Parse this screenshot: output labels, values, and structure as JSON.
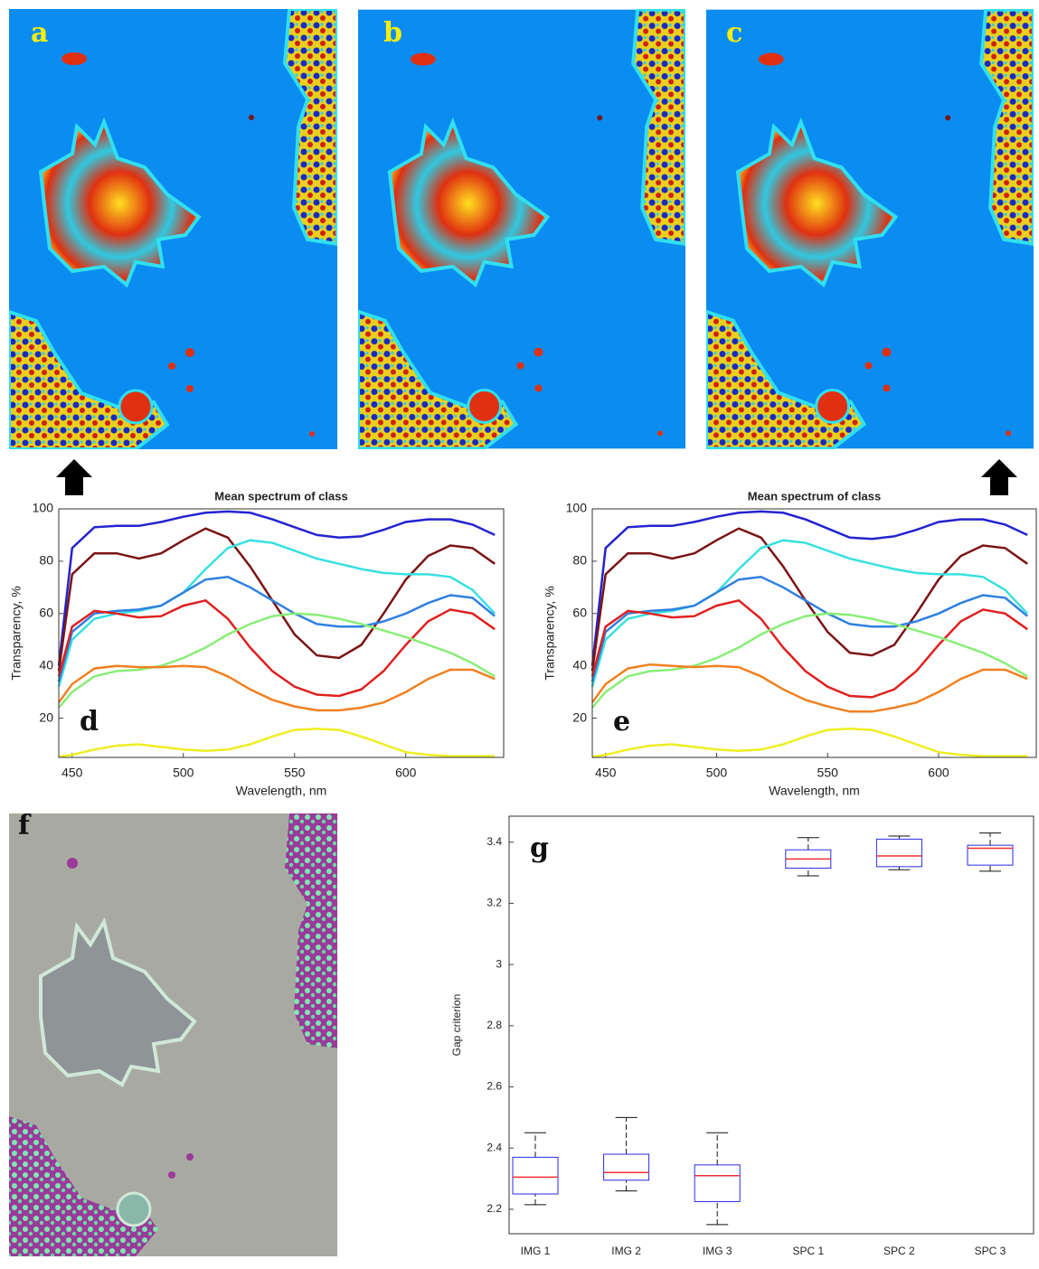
{
  "image_panels": [
    {
      "label": "a"
    },
    {
      "label": "b"
    },
    {
      "label": "c"
    },
    {
      "label": "f"
    }
  ],
  "chart_data": [
    {
      "type": "line",
      "panel_label": "d",
      "title": "Mean spectrum of class",
      "x_label": "Wavelength, nm",
      "y_label": "Transparency, %",
      "xlim": [
        444,
        644
      ],
      "ylim": [
        5,
        100
      ],
      "xticks": [
        450,
        500,
        550,
        600
      ],
      "yticks": [
        20,
        40,
        60,
        80,
        100
      ],
      "x": [
        444,
        450,
        460,
        470,
        480,
        490,
        500,
        510,
        520,
        530,
        540,
        550,
        560,
        570,
        580,
        590,
        600,
        610,
        620,
        630,
        640
      ],
      "series": [
        {
          "color": "#2323d0",
          "values": [
            40,
            85,
            93,
            93.5,
            93.5,
            95,
            97,
            98.5,
            99,
            98.5,
            96,
            93,
            90,
            89,
            89.5,
            92,
            95,
            96,
            96,
            94,
            90
          ]
        },
        {
          "color": "#7a1414",
          "values": [
            38,
            75,
            83,
            83,
            81,
            83,
            88,
            92.5,
            89,
            78,
            65,
            52,
            44,
            43,
            48,
            60,
            73,
            82,
            86,
            85,
            79
          ]
        },
        {
          "color": "#38e0e0",
          "values": [
            32,
            50,
            58,
            60,
            61,
            63,
            68,
            77,
            85,
            88,
            87,
            84,
            81,
            79,
            77,
            75.5,
            75,
            75,
            74,
            69,
            60
          ]
        },
        {
          "color": "#2f80e0",
          "values": [
            34,
            53,
            60,
            61,
            61.5,
            63,
            68,
            73,
            74,
            70,
            65,
            60,
            56,
            55,
            55,
            57,
            60,
            64,
            67,
            66,
            59
          ]
        },
        {
          "color": "#e02020",
          "values": [
            36,
            55,
            61,
            60,
            58.5,
            59,
            63,
            65,
            58,
            47,
            38,
            32,
            29,
            28.5,
            31,
            38,
            48,
            57,
            61.5,
            60,
            54
          ]
        },
        {
          "color": "#88ee77",
          "values": [
            24,
            30,
            36,
            38,
            38.5,
            40,
            43,
            47,
            52,
            56,
            59,
            60,
            59.5,
            58,
            56,
            53.5,
            51,
            48,
            45,
            41,
            36
          ]
        },
        {
          "color": "#f08020",
          "values": [
            26,
            33,
            39,
            40,
            39.5,
            39.5,
            40,
            39.5,
            36,
            31,
            27,
            24.5,
            23,
            23,
            24,
            26,
            30,
            35,
            38.5,
            38.5,
            35
          ]
        },
        {
          "color": "#eeee22",
          "values": [
            5.2,
            6,
            8,
            9.5,
            10,
            9,
            8,
            7.5,
            8,
            10,
            13,
            15.5,
            16,
            15.5,
            13,
            10,
            7,
            6,
            5.5,
            5.5,
            5.5
          ]
        }
      ]
    },
    {
      "type": "line",
      "panel_label": "e",
      "title": "Mean spectrum of class",
      "x_label": "Wavelength, nm",
      "y_label": "Transparency, %",
      "xlim": [
        444,
        644
      ],
      "ylim": [
        5,
        100
      ],
      "xticks": [
        450,
        500,
        550,
        600
      ],
      "yticks": [
        20,
        40,
        60,
        80,
        100
      ],
      "x": [
        444,
        450,
        460,
        470,
        480,
        490,
        500,
        510,
        520,
        530,
        540,
        550,
        560,
        570,
        580,
        590,
        600,
        610,
        620,
        630,
        640
      ],
      "series": [
        {
          "color": "#2323d0",
          "values": [
            40,
            85,
            93,
            93.5,
            93.5,
            95,
            97,
            98.5,
            99,
            98.5,
            96,
            92.5,
            89,
            88.5,
            89.5,
            92,
            95,
            96,
            96,
            94,
            90
          ]
        },
        {
          "color": "#7a1414",
          "values": [
            38,
            75,
            83,
            83,
            81,
            83,
            88,
            92.5,
            89,
            78,
            65,
            53,
            45,
            44,
            48,
            60,
            73,
            82,
            86,
            85,
            79
          ]
        },
        {
          "color": "#38e0e0",
          "values": [
            32,
            50,
            58,
            60,
            61,
            63,
            68,
            77,
            85,
            88,
            87,
            84,
            81,
            79,
            77,
            75.5,
            75,
            75,
            74,
            69,
            60
          ]
        },
        {
          "color": "#2f80e0",
          "values": [
            34,
            53,
            60,
            61,
            61.5,
            63,
            68,
            73,
            74,
            70,
            65,
            60,
            56,
            55,
            55,
            57,
            60,
            64,
            67,
            66,
            59
          ]
        },
        {
          "color": "#e02020",
          "values": [
            36,
            55,
            61,
            60,
            58.5,
            59,
            63,
            65,
            58,
            47,
            38,
            32,
            28.5,
            28,
            31,
            38,
            48,
            57,
            61.5,
            60,
            54
          ]
        },
        {
          "color": "#88ee77",
          "values": [
            24,
            30,
            36,
            38,
            38.5,
            40,
            43,
            47,
            52,
            56,
            59,
            60,
            59.5,
            58,
            56,
            53.5,
            51,
            48,
            45,
            41,
            36
          ]
        },
        {
          "color": "#f08020",
          "values": [
            26,
            33,
            39,
            40.5,
            40,
            39.5,
            40,
            39.5,
            36,
            31,
            27,
            24.5,
            22.5,
            22.5,
            24,
            26,
            30,
            35,
            38.5,
            38.5,
            35
          ]
        },
        {
          "color": "#eeee22",
          "values": [
            5.2,
            6,
            8,
            9.5,
            10,
            9,
            8,
            7.5,
            8,
            10,
            13,
            15.5,
            16,
            15.5,
            13,
            10,
            7,
            6,
            5.5,
            5.5,
            5.5
          ]
        }
      ]
    },
    {
      "type": "box",
      "panel_label": "g",
      "y_label": "Gap criterion",
      "ylim": [
        2.12,
        3.485
      ],
      "yticks": [
        2.2,
        2.4,
        2.6,
        2.8,
        3,
        3.2,
        3.4
      ],
      "categories": [
        "IMG 1",
        "IMG 2",
        "IMG 3",
        "SPC 1",
        "SPC 2",
        "SPC 3"
      ],
      "box_color": "#2a2ae8",
      "median_color": "#f03030",
      "whisker_color": "#111111",
      "boxes": [
        {
          "whislo": 2.215,
          "q1": 2.25,
          "median": 2.305,
          "q3": 2.37,
          "whishi": 2.45
        },
        {
          "whislo": 2.26,
          "q1": 2.295,
          "median": 2.32,
          "q3": 2.38,
          "whishi": 2.5
        },
        {
          "whislo": 2.15,
          "q1": 2.225,
          "median": 2.31,
          "q3": 2.345,
          "whishi": 2.45
        },
        {
          "whislo": 3.29,
          "q1": 3.315,
          "median": 3.345,
          "q3": 3.375,
          "whishi": 3.415
        },
        {
          "whislo": 3.31,
          "q1": 3.32,
          "median": 3.355,
          "q3": 3.41,
          "whishi": 3.42
        },
        {
          "whislo": 3.305,
          "q1": 3.325,
          "median": 3.38,
          "q3": 3.39,
          "whishi": 3.43
        }
      ]
    }
  ]
}
